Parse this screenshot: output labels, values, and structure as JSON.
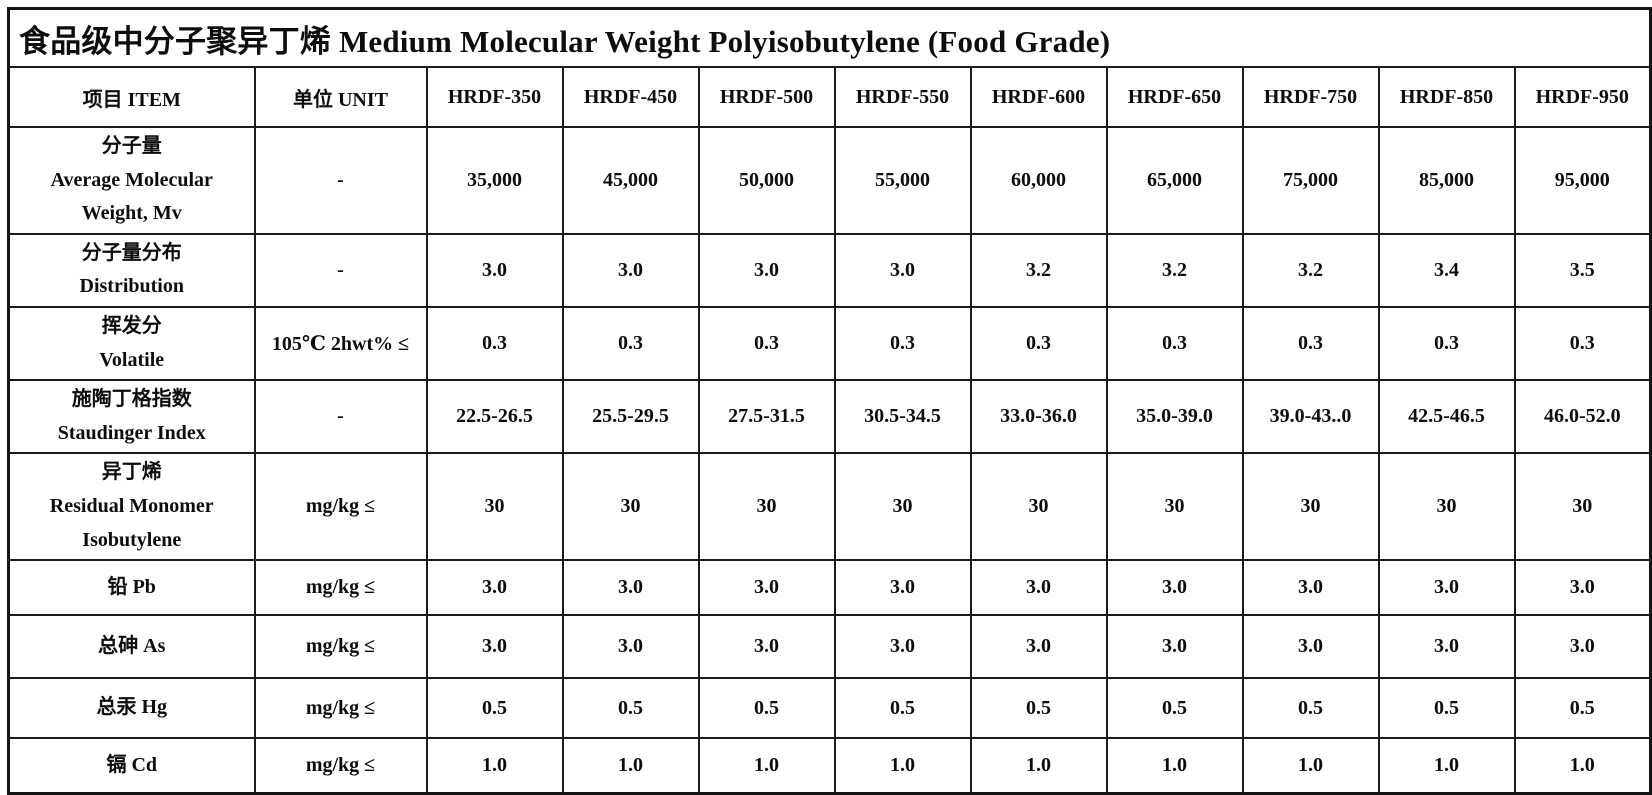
{
  "title": "食品级中分子聚异丁烯 Medium Molecular Weight Polyisobutylene (Food Grade)",
  "header": [
    "项目 ITEM",
    "单位 UNIT",
    "HRDF-350",
    "HRDF-450",
    "HRDF-500",
    "HRDF-550",
    "HRDF-600",
    "HRDF-650",
    "HRDF-750",
    "HRDF-850",
    "HRDF-950"
  ],
  "rows": [
    {
      "item": [
        "分子量",
        "Average Molecular",
        "Weight, Mv"
      ],
      "unit": "-",
      "values": [
        "35,000",
        "45,000",
        "50,000",
        "55,000",
        "60,000",
        "65,000",
        "75,000",
        "85,000",
        "95,000"
      ]
    },
    {
      "item": [
        "分子量分布",
        "Distribution"
      ],
      "unit": "-",
      "values": [
        "3.0",
        "3.0",
        "3.0",
        "3.0",
        "3.2",
        "3.2",
        "3.2",
        "3.4",
        "3.5"
      ]
    },
    {
      "item": [
        "挥发分",
        "Volatile"
      ],
      "unit": "105℃ 2hwt% ≤",
      "values": [
        "0.3",
        "0.3",
        "0.3",
        "0.3",
        "0.3",
        "0.3",
        "0.3",
        "0.3",
        "0.3"
      ]
    },
    {
      "item": [
        "施陶丁格指数",
        "Staudinger Index"
      ],
      "unit": "-",
      "values": [
        "22.5-26.5",
        "25.5-29.5",
        "27.5-31.5",
        "30.5-34.5",
        "33.0-36.0",
        "35.0-39.0",
        "39.0-43..0",
        "42.5-46.5",
        "46.0-52.0"
      ]
    },
    {
      "item": [
        "异丁烯",
        "Residual Monomer",
        "Isobutylene"
      ],
      "unit": "mg/kg ≤",
      "values": [
        "30",
        "30",
        "30",
        "30",
        "30",
        "30",
        "30",
        "30",
        "30"
      ]
    },
    {
      "item": [
        "铅 Pb"
      ],
      "unit": "mg/kg ≤",
      "values": [
        "3.0",
        "3.0",
        "3.0",
        "3.0",
        "3.0",
        "3.0",
        "3.0",
        "3.0",
        "3.0"
      ]
    },
    {
      "item": [
        "总砷 As"
      ],
      "unit": "mg/kg ≤",
      "values": [
        "3.0",
        "3.0",
        "3.0",
        "3.0",
        "3.0",
        "3.0",
        "3.0",
        "3.0",
        "3.0"
      ]
    },
    {
      "item": [
        "总汞 Hg"
      ],
      "unit": "mg/kg ≤",
      "values": [
        "0.5",
        "0.5",
        "0.5",
        "0.5",
        "0.5",
        "0.5",
        "0.5",
        "0.5",
        "0.5"
      ]
    },
    {
      "item": [
        "镉 Cd"
      ],
      "unit": "mg/kg ≤",
      "values": [
        "1.0",
        "1.0",
        "1.0",
        "1.0",
        "1.0",
        "1.0",
        "1.0",
        "1.0",
        "1.0"
      ]
    }
  ]
}
